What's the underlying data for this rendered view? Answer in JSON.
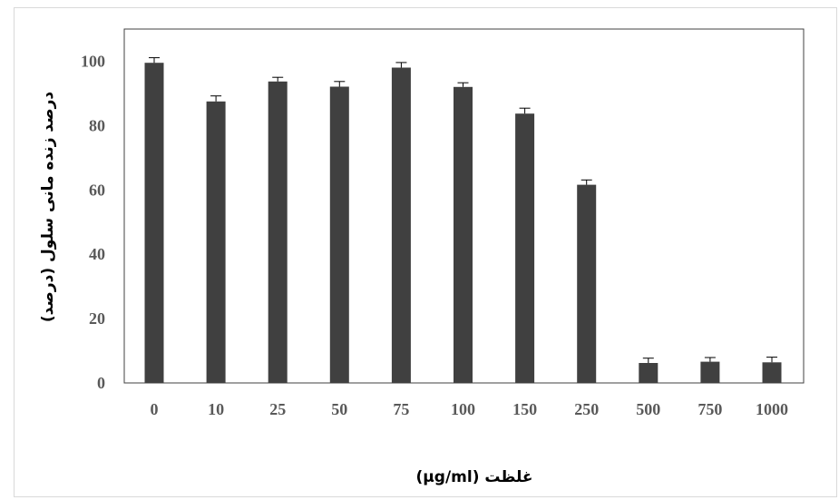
{
  "chart_data": {
    "type": "bar",
    "title": "",
    "xlabel": "غلظت (µg/ml)",
    "ylabel": "درصد زنده مانی سلول (درصد)",
    "categories": [
      "0",
      "10",
      "25",
      "50",
      "75",
      "100",
      "150",
      "250",
      "500",
      "750",
      "1000"
    ],
    "values": [
      99.5,
      87.5,
      93.7,
      92.1,
      98.0,
      92.0,
      83.7,
      61.6,
      6.2,
      6.6,
      6.4
    ],
    "errors": [
      1.6,
      1.7,
      1.3,
      1.6,
      1.6,
      1.3,
      1.7,
      1.5,
      1.5,
      1.3,
      1.6
    ],
    "ylim": [
      0,
      110
    ],
    "yticks": [
      0,
      20,
      40,
      60,
      80,
      100
    ],
    "grid": false,
    "legend": "none",
    "bar_color": "#404040",
    "error_color": "#000000"
  }
}
